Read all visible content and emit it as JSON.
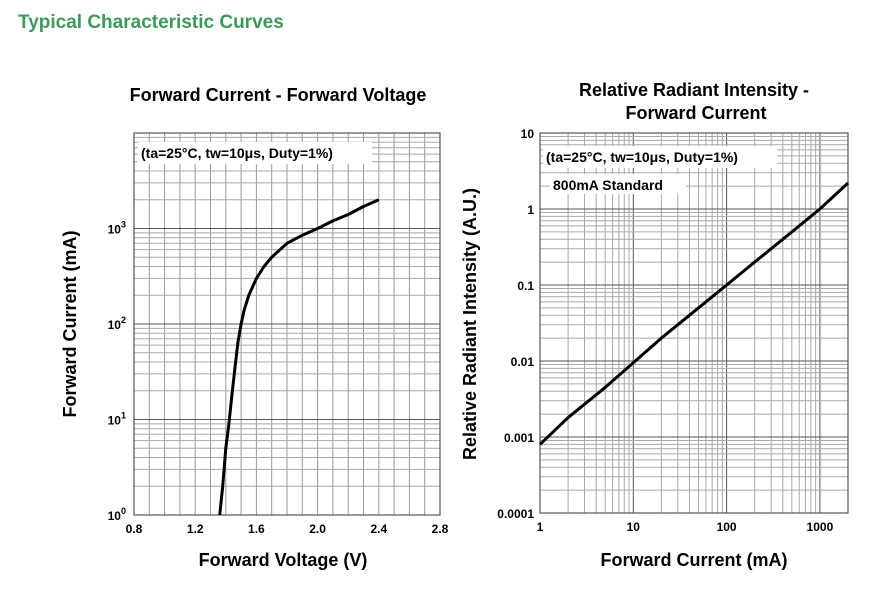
{
  "section_title": "Typical Characteristic Curves",
  "chart_data": [
    {
      "type": "line",
      "title": "Forward Current - Forward Voltage",
      "xlabel": "Forward Voltage (V)",
      "ylabel": "Forward Current (mA)",
      "annotation": "(ta=25°C, tw=10μs, Duty=1%)",
      "x_scale": "linear",
      "y_scale": "log",
      "xlim": [
        0.8,
        2.8
      ],
      "ylim": [
        1,
        10000
      ],
      "x_ticks": [
        "0.8",
        "1.2",
        "1.6",
        "2.0",
        "2.4",
        "2.8"
      ],
      "x_tick_values": [
        0.8,
        1.2,
        1.6,
        2.0,
        2.4,
        2.8
      ],
      "y_ticks": [
        {
          "base": "10",
          "exp": "0",
          "value": 1
        },
        {
          "base": "10",
          "exp": "1",
          "value": 10
        },
        {
          "base": "10",
          "exp": "2",
          "value": 100
        },
        {
          "base": "10",
          "exp": "3",
          "value": 1000
        }
      ],
      "grid": true,
      "series": [
        {
          "x": [
            1.36,
            1.38,
            1.4,
            1.42,
            1.44,
            1.46,
            1.48,
            1.5,
            1.52,
            1.55,
            1.6,
            1.65,
            1.7,
            1.8,
            1.9,
            2.0,
            2.1,
            2.2,
            2.3,
            2.4
          ],
          "y": [
            1,
            2,
            5,
            9,
            18,
            35,
            65,
            100,
            140,
            200,
            300,
            400,
            500,
            700,
            850,
            1000,
            1200,
            1400,
            1700,
            2000
          ]
        }
      ]
    },
    {
      "type": "line",
      "title": "Relative Radiant Intensity - Forward Current",
      "title_lines": [
        "Relative Radiant Intensity -",
        "Forward Current"
      ],
      "xlabel": "Forward Current (mA)",
      "ylabel": "Relative Radiant Intensity (A.U.)",
      "annotations": [
        "(ta=25°C, tw=10μs, Duty=1%)",
        "800mA Standard"
      ],
      "x_scale": "log",
      "y_scale": "log",
      "xlim": [
        1,
        2000
      ],
      "ylim": [
        0.0001,
        10
      ],
      "x_ticks": [
        "1",
        "10",
        "100",
        "1000"
      ],
      "x_tick_values": [
        1,
        10,
        100,
        1000
      ],
      "y_ticks": [
        "0.0001",
        "0.001",
        "0.01",
        "0.1",
        "1",
        "10"
      ],
      "y_tick_values": [
        0.0001,
        0.001,
        0.01,
        0.1,
        1,
        10
      ],
      "grid": true,
      "series": [
        {
          "x": [
            1,
            2,
            5,
            10,
            20,
            50,
            100,
            200,
            500,
            1000,
            2000
          ],
          "y": [
            0.0008,
            0.0018,
            0.0045,
            0.0095,
            0.02,
            0.05,
            0.1,
            0.2,
            0.5,
            1.0,
            2.2
          ]
        }
      ]
    }
  ]
}
